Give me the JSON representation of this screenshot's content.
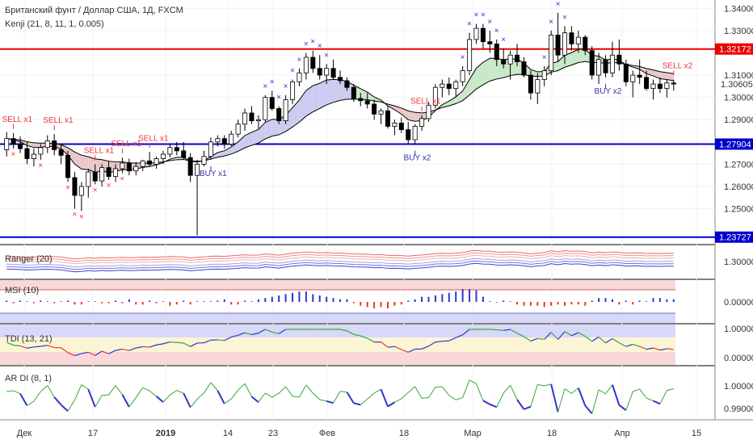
{
  "header": {
    "title": "Британский фунт / Доллар США, 1Д, FXCM",
    "indicator": "Kenji (21, 8, 11, 1, 0.005)"
  },
  "colors": {
    "up": "#ffffff",
    "down": "#000000",
    "wick": "#000000",
    "ema_fast": "#000000",
    "ema_slow": "#000000",
    "cloud_bear": "#e8c8c8",
    "cloud_bull": "#c8e8c8",
    "cloud_neutral": "#ccccf0",
    "level": "#0000cc",
    "level_red": "#ee0000",
    "sell": "#ee3333",
    "buy": "#3333aa",
    "xmark": "#3333cc"
  },
  "chart_data": [
    {
      "type": "candlestick",
      "name": "main",
      "x": [
        "Дек",
        "17",
        "2019",
        "14",
        "23",
        "Фев",
        "18",
        "Мар",
        "18",
        "Апр",
        "15"
      ],
      "y_ticks": [
        "1.34000",
        "1.33000",
        "1.31000",
        "1.30000",
        "1.29000",
        "1.27000",
        "1.26000",
        "1.25000"
      ],
      "ylim": [
        1.235,
        1.343
      ],
      "levels": [
        {
          "value": 1.32172,
          "label": "1.32172",
          "color": "red"
        },
        {
          "value": 1.27904,
          "label": "1.27904",
          "color": "blue"
        },
        {
          "value": 1.23727,
          "label": "1.23727",
          "color": "blue"
        }
      ],
      "last_price": {
        "value": 1.30605,
        "label": "1.30605"
      },
      "candles": [
        [
          1.2765,
          1.2845,
          1.2735,
          1.2815
        ],
        [
          1.2815,
          1.284,
          1.277,
          1.279
        ],
        [
          1.279,
          1.2825,
          1.275,
          1.277
        ],
        [
          1.277,
          1.28,
          1.27,
          1.2725
        ],
        [
          1.2725,
          1.277,
          1.269,
          1.2745
        ],
        [
          1.2745,
          1.279,
          1.272,
          1.2775
        ],
        [
          1.2775,
          1.283,
          1.275,
          1.2805
        ],
        [
          1.2805,
          1.2835,
          1.274,
          1.2765
        ],
        [
          1.2765,
          1.279,
          1.27,
          1.274
        ],
        [
          1.274,
          1.276,
          1.262,
          1.264
        ],
        [
          1.264,
          1.2665,
          1.25,
          1.256
        ],
        [
          1.256,
          1.262,
          1.249,
          1.26
        ],
        [
          1.26,
          1.268,
          1.255,
          1.2665
        ],
        [
          1.2665,
          1.27,
          1.261,
          1.2625
        ],
        [
          1.2625,
          1.27,
          1.26,
          1.2685
        ],
        [
          1.2685,
          1.2715,
          1.263,
          1.2645
        ],
        [
          1.2645,
          1.27,
          1.262,
          1.268
        ],
        [
          1.268,
          1.273,
          1.266,
          1.2705
        ],
        [
          1.2705,
          1.2725,
          1.265,
          1.267
        ],
        [
          1.267,
          1.271,
          1.265,
          1.269
        ],
        [
          1.269,
          1.272,
          1.267,
          1.2715
        ],
        [
          1.2715,
          1.2755,
          1.269,
          1.27
        ],
        [
          1.27,
          1.2735,
          1.268,
          1.2725
        ],
        [
          1.2725,
          1.276,
          1.27,
          1.2745
        ],
        [
          1.2745,
          1.279,
          1.273,
          1.2775
        ],
        [
          1.2775,
          1.28,
          1.274,
          1.276
        ],
        [
          1.276,
          1.28,
          1.272,
          1.273
        ],
        [
          1.273,
          1.275,
          1.262,
          1.265
        ],
        [
          1.265,
          1.272,
          1.238,
          1.27
        ],
        [
          1.27,
          1.276,
          1.269,
          1.2735
        ],
        [
          1.2735,
          1.282,
          1.272,
          1.28
        ],
        [
          1.28,
          1.283,
          1.278,
          1.2815
        ],
        [
          1.2815,
          1.283,
          1.277,
          1.279
        ],
        [
          1.279,
          1.285,
          1.278,
          1.2835
        ],
        [
          1.2835,
          1.29,
          1.282,
          1.288
        ],
        [
          1.288,
          1.295,
          1.285,
          1.293
        ],
        [
          1.293,
          1.296,
          1.288,
          1.2895
        ],
        [
          1.2895,
          1.292,
          1.286,
          1.29
        ],
        [
          1.29,
          1.301,
          1.289,
          1.3
        ],
        [
          1.3,
          1.303,
          1.294,
          1.295
        ],
        [
          1.295,
          1.296,
          1.288,
          1.2895
        ],
        [
          1.2895,
          1.301,
          1.288,
          1.299
        ],
        [
          1.299,
          1.308,
          1.297,
          1.307
        ],
        [
          1.307,
          1.313,
          1.305,
          1.311
        ],
        [
          1.311,
          1.32,
          1.308,
          1.318
        ],
        [
          1.318,
          1.321,
          1.311,
          1.313
        ],
        [
          1.313,
          1.319,
          1.308,
          1.31
        ],
        [
          1.31,
          1.315,
          1.306,
          1.313
        ],
        [
          1.313,
          1.317,
          1.308,
          1.309
        ],
        [
          1.309,
          1.312,
          1.306,
          1.3075
        ],
        [
          1.3075,
          1.309,
          1.303,
          1.3045
        ],
        [
          1.3045,
          1.306,
          1.298,
          1.2995
        ],
        [
          1.2995,
          1.302,
          1.296,
          1.2985
        ],
        [
          1.2985,
          1.302,
          1.295,
          1.297
        ],
        [
          1.297,
          1.299,
          1.29,
          1.2925
        ],
        [
          1.2925,
          1.295,
          1.288,
          1.294
        ],
        [
          1.294,
          1.296,
          1.286,
          1.287
        ],
        [
          1.287,
          1.29,
          1.283,
          1.2885
        ],
        [
          1.2885,
          1.291,
          1.284,
          1.2855
        ],
        [
          1.2855,
          1.289,
          1.279,
          1.281
        ],
        [
          1.281,
          1.288,
          1.279,
          1.287
        ],
        [
          1.287,
          1.292,
          1.285,
          1.2905
        ],
        [
          1.2905,
          1.298,
          1.289,
          1.2965
        ],
        [
          1.2965,
          1.306,
          1.295,
          1.3045
        ],
        [
          1.3045,
          1.308,
          1.3,
          1.306
        ],
        [
          1.306,
          1.309,
          1.301,
          1.304
        ],
        [
          1.304,
          1.308,
          1.3,
          1.307
        ],
        [
          1.307,
          1.314,
          1.305,
          1.312
        ],
        [
          1.312,
          1.329,
          1.31,
          1.326
        ],
        [
          1.326,
          1.333,
          1.324,
          1.331
        ],
        [
          1.331,
          1.333,
          1.322,
          1.325
        ],
        [
          1.325,
          1.33,
          1.32,
          1.324
        ],
        [
          1.324,
          1.326,
          1.314,
          1.317
        ],
        [
          1.317,
          1.322,
          1.313,
          1.315
        ],
        [
          1.315,
          1.321,
          1.308,
          1.319
        ],
        [
          1.319,
          1.324,
          1.314,
          1.316
        ],
        [
          1.316,
          1.318,
          1.309,
          1.31
        ],
        [
          1.31,
          1.312,
          1.299,
          1.302
        ],
        [
          1.302,
          1.311,
          1.297,
          1.308
        ],
        [
          1.308,
          1.314,
          1.305,
          1.312
        ],
        [
          1.312,
          1.33,
          1.31,
          1.328
        ],
        [
          1.328,
          1.338,
          1.316,
          1.319
        ],
        [
          1.319,
          1.332,
          1.315,
          1.329
        ],
        [
          1.329,
          1.332,
          1.321,
          1.324
        ],
        [
          1.324,
          1.33,
          1.32,
          1.327
        ],
        [
          1.327,
          1.328,
          1.319,
          1.321
        ],
        [
          1.321,
          1.323,
          1.308,
          1.31
        ],
        [
          1.31,
          1.32,
          1.306,
          1.317
        ],
        [
          1.317,
          1.319,
          1.309,
          1.311
        ],
        [
          1.311,
          1.325,
          1.309,
          1.319
        ],
        [
          1.319,
          1.326,
          1.312,
          1.315
        ],
        [
          1.315,
          1.317,
          1.305,
          1.307
        ],
        [
          1.307,
          1.312,
          1.3,
          1.31
        ],
        [
          1.31,
          1.317,
          1.306,
          1.309
        ],
        [
          1.309,
          1.312,
          1.303,
          1.304
        ],
        [
          1.304,
          1.308,
          1.299,
          1.306
        ],
        [
          1.306,
          1.309,
          1.302,
          1.304
        ],
        [
          1.304,
          1.308,
          1.3,
          1.3065
        ],
        [
          1.3065,
          1.308,
          1.303,
          1.306
        ]
      ],
      "signals": [
        {
          "label": "SELL x1",
          "kind": "sell",
          "i": 1
        },
        {
          "label": "SELL x1",
          "kind": "sell",
          "i": 7
        },
        {
          "label": "SELL x1",
          "kind": "sell",
          "i": 13
        },
        {
          "label": "SELL x1",
          "kind": "sell",
          "i": 17
        },
        {
          "label": "SELL x1",
          "kind": "sell",
          "i": 21
        },
        {
          "label": "BUY x1",
          "kind": "buy",
          "i": 30
        },
        {
          "label": "SELL x1",
          "kind": "sell",
          "i": 61
        },
        {
          "label": "BUY x2",
          "kind": "buy",
          "i": 60
        },
        {
          "label": "BUY x2",
          "kind": "buy",
          "i": 88
        },
        {
          "label": "SELL x2",
          "kind": "sell",
          "i": 98
        }
      ]
    },
    {
      "type": "line",
      "name": "Ranger (20)",
      "y_ticks": [
        "1.30000"
      ],
      "band_low_ylim": [
        0,
        1
      ]
    },
    {
      "type": "bar",
      "name": "MSI (10)",
      "y_ticks": [
        "0.00000"
      ],
      "values": [
        0.1,
        -0.1,
        0.1,
        0.05,
        -0.1,
        0.1,
        0.05,
        -0.1,
        0.05,
        0.1,
        -0.2,
        -0.2,
        0.05,
        0.05,
        -0.1,
        -0.1,
        0.1,
        -0.1,
        0.2,
        -0.2,
        -0.2,
        0.1,
        -0.1,
        0.05,
        -0.3,
        -0.2,
        0.1,
        -0.2,
        0.05,
        0.05,
        0.05,
        0.1,
        0.2,
        -0.2,
        -0.2,
        0.1,
        0.05,
        0.2,
        0.3,
        0.4,
        0.5,
        0.6,
        0.7,
        0.8,
        0.8,
        0.6,
        0.5,
        0.4,
        0.3,
        0.2,
        0.2,
        -0.1,
        -0.3,
        -0.4,
        -0.5,
        -0.4,
        -0.5,
        -0.3,
        -0.2,
        0.1,
        0.2,
        0.4,
        0.4,
        0.5,
        0.6,
        0.7,
        0.8,
        1.0,
        1.0,
        0.9,
        0.4,
        0.05,
        -0.05,
        0.1,
        0.05,
        -0.2,
        -0.3,
        -0.3,
        -0.3,
        -0.4,
        -0.3,
        -0.2,
        -0.3,
        -0.2,
        -0.2,
        -0.3,
        0.1,
        0.3,
        0.3,
        0.2,
        -0.2,
        0.1,
        -0.2,
        0.1,
        0.05,
        0.3,
        0.3,
        0.2,
        0.2
      ]
    },
    {
      "type": "line",
      "name": "TDI (13, 21)",
      "y_ticks": [
        "1.00000",
        "0.00000"
      ]
    },
    {
      "type": "line",
      "name": "AR DI (8, 1)",
      "y_ticks": [
        "1.00000",
        "0.99000"
      ]
    }
  ]
}
